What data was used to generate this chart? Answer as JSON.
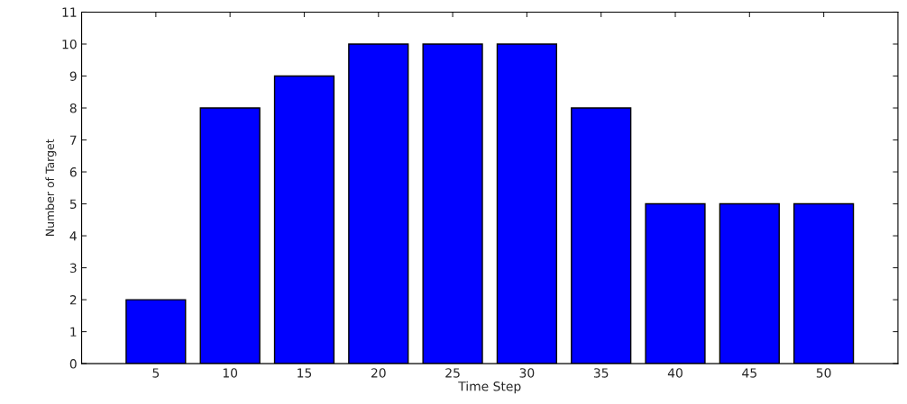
{
  "chart_data": {
    "type": "bar",
    "xlabel": "Time Step",
    "ylabel": "Number of Target",
    "x": [
      5,
      10,
      15,
      20,
      25,
      30,
      35,
      40,
      45,
      50
    ],
    "values": [
      2,
      8,
      9,
      10,
      10,
      10,
      8,
      5,
      5,
      5
    ],
    "color": "#0000ff",
    "xlim": [
      0,
      55
    ],
    "xticks": [
      5,
      10,
      15,
      20,
      25,
      30,
      35,
      40,
      45,
      50
    ],
    "ylim": [
      0,
      11
    ],
    "yticks": [
      0,
      1,
      2,
      3,
      4,
      5,
      6,
      7,
      8,
      9,
      10,
      11
    ],
    "grid": false,
    "legend": false
  }
}
